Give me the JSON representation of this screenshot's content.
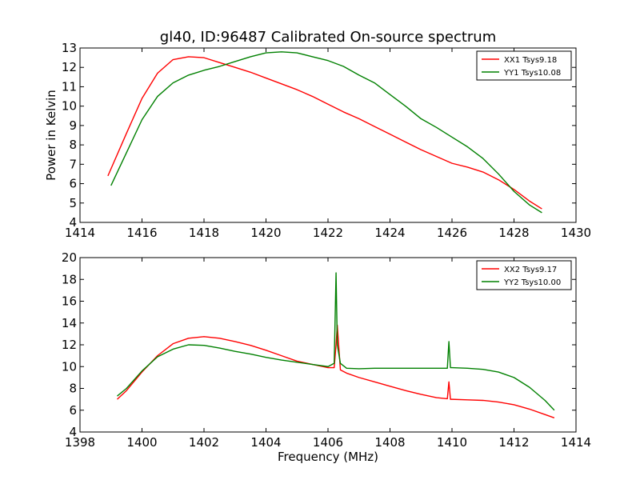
{
  "figure": {
    "title": "gl40, ID:96487 Calibrated On-source spectrum"
  },
  "chart_data": [
    {
      "type": "line",
      "title": "gl40, ID:96487 Calibrated On-source spectrum",
      "xlabel": "",
      "ylabel": "Power in Kelvin",
      "xlim": [
        1414,
        1430
      ],
      "ylim": [
        4,
        13
      ],
      "xticks": [
        1414,
        1416,
        1418,
        1420,
        1422,
        1424,
        1426,
        1428,
        1430
      ],
      "yticks": [
        4,
        5,
        6,
        7,
        8,
        9,
        10,
        11,
        12,
        13
      ],
      "grid": false,
      "legend_position": "top-right",
      "series": [
        {
          "name": "XX1 Tsys9.18",
          "color": "#ff0000",
          "x": [
            1414.9,
            1415.5,
            1416.0,
            1416.5,
            1417.0,
            1417.5,
            1418.0,
            1418.5,
            1419.0,
            1419.5,
            1420.0,
            1420.5,
            1421.0,
            1421.5,
            1422.0,
            1422.5,
            1423.0,
            1423.5,
            1424.0,
            1424.5,
            1425.0,
            1425.5,
            1426.0,
            1426.5,
            1427.0,
            1427.5,
            1428.0,
            1428.5,
            1428.9
          ],
          "y": [
            6.4,
            8.6,
            10.4,
            11.7,
            12.4,
            12.55,
            12.5,
            12.25,
            12.0,
            11.75,
            11.45,
            11.15,
            10.85,
            10.5,
            10.1,
            9.7,
            9.35,
            8.95,
            8.55,
            8.15,
            7.75,
            7.4,
            7.05,
            6.85,
            6.6,
            6.2,
            5.7,
            5.1,
            4.7
          ]
        },
        {
          "name": "YY1 Tsys10.08",
          "color": "#008000",
          "x": [
            1415.0,
            1415.5,
            1416.0,
            1416.5,
            1417.0,
            1417.5,
            1418.0,
            1418.5,
            1419.0,
            1419.5,
            1420.0,
            1420.5,
            1421.0,
            1421.5,
            1422.0,
            1422.5,
            1423.0,
            1423.5,
            1424.0,
            1424.5,
            1425.0,
            1425.5,
            1426.0,
            1426.5,
            1427.0,
            1427.5,
            1428.0,
            1428.5,
            1428.9
          ],
          "y": [
            5.9,
            7.6,
            9.3,
            10.5,
            11.2,
            11.6,
            11.85,
            12.05,
            12.3,
            12.55,
            12.75,
            12.8,
            12.75,
            12.55,
            12.35,
            12.05,
            11.6,
            11.2,
            10.6,
            10.0,
            9.35,
            8.9,
            8.4,
            7.9,
            7.3,
            6.5,
            5.6,
            4.9,
            4.5
          ]
        }
      ]
    },
    {
      "type": "line",
      "title": "",
      "xlabel": "Frequency (MHz)",
      "ylabel": "",
      "xlim": [
        1398,
        1414
      ],
      "ylim": [
        4,
        20
      ],
      "xticks": [
        1398,
        1400,
        1402,
        1404,
        1406,
        1408,
        1410,
        1412,
        1414
      ],
      "yticks": [
        4,
        6,
        8,
        10,
        12,
        14,
        16,
        18,
        20
      ],
      "grid": false,
      "legend_position": "top-right",
      "series": [
        {
          "name": "XX2 Tsys9.17",
          "color": "#ff0000",
          "x": [
            1399.2,
            1399.5,
            1400.0,
            1400.5,
            1401.0,
            1401.5,
            1402.0,
            1402.5,
            1403.0,
            1403.5,
            1404.0,
            1404.5,
            1405.0,
            1405.5,
            1406.0,
            1406.2,
            1406.26,
            1406.3,
            1406.4,
            1406.6,
            1407.0,
            1407.5,
            1408.0,
            1408.5,
            1409.0,
            1409.5,
            1409.85,
            1409.9,
            1409.95,
            1410.0,
            1410.5,
            1411.0,
            1411.5,
            1412.0,
            1412.5,
            1413.0,
            1413.3
          ],
          "y": [
            7.0,
            7.8,
            9.5,
            11.0,
            12.1,
            12.6,
            12.75,
            12.6,
            12.3,
            11.95,
            11.5,
            11.0,
            10.5,
            10.2,
            9.9,
            9.9,
            12.0,
            13.8,
            9.7,
            9.4,
            9.0,
            8.6,
            8.2,
            7.8,
            7.45,
            7.15,
            7.05,
            8.6,
            7.0,
            7.0,
            6.95,
            6.9,
            6.75,
            6.5,
            6.1,
            5.6,
            5.3
          ]
        },
        {
          "name": "YY2 Tsys10.00",
          "color": "#008000",
          "x": [
            1399.2,
            1399.5,
            1400.0,
            1400.5,
            1401.0,
            1401.5,
            1402.0,
            1402.5,
            1403.0,
            1403.5,
            1404.0,
            1404.5,
            1405.0,
            1405.5,
            1406.0,
            1406.2,
            1406.26,
            1406.3,
            1406.4,
            1406.6,
            1407.0,
            1407.5,
            1408.0,
            1408.5,
            1409.0,
            1409.5,
            1409.85,
            1409.9,
            1409.95,
            1410.0,
            1410.5,
            1411.0,
            1411.5,
            1412.0,
            1412.5,
            1413.0,
            1413.3
          ],
          "y": [
            7.3,
            8.0,
            9.6,
            10.9,
            11.6,
            12.0,
            11.95,
            11.7,
            11.4,
            11.15,
            10.85,
            10.6,
            10.4,
            10.2,
            10.0,
            10.3,
            18.6,
            12.0,
            10.3,
            9.85,
            9.8,
            9.85,
            9.85,
            9.85,
            9.85,
            9.85,
            9.85,
            12.3,
            9.9,
            9.9,
            9.85,
            9.75,
            9.5,
            9.0,
            8.1,
            6.9,
            6.0
          ]
        }
      ]
    }
  ]
}
